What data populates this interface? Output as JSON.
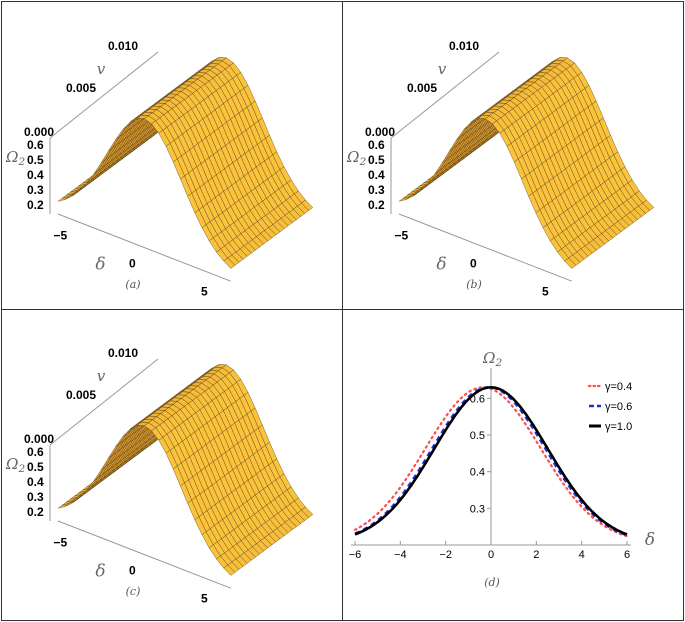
{
  "chart_data": [
    {
      "type": "surface3d",
      "panel_label": "(a)",
      "xlabel": "δ",
      "ylabel": "v",
      "zlabel": "Ω2",
      "x_ticks": [
        "−5",
        "0",
        "5"
      ],
      "y_ticks": [
        "0.000",
        "0.005",
        "0.010"
      ],
      "z_ticks": [
        "0.2",
        "0.3",
        "0.4",
        "0.5",
        "0.6"
      ],
      "xlim": [
        -6,
        6
      ],
      "ylim": [
        0,
        0.01
      ],
      "zlim": [
        0.15,
        0.65
      ],
      "peak": 0.63,
      "sigma": 2.6
    },
    {
      "type": "surface3d",
      "panel_label": "(b)",
      "xlabel": "δ",
      "ylabel": "v",
      "zlabel": "Ω2",
      "x_ticks": [
        "−5",
        "0",
        "5"
      ],
      "y_ticks": [
        "0.000",
        "0.005",
        "0.010"
      ],
      "z_ticks": [
        "0.2",
        "0.3",
        "0.4",
        "0.5",
        "0.6"
      ],
      "xlim": [
        -6,
        6
      ],
      "ylim": [
        0,
        0.01
      ],
      "zlim": [
        0.15,
        0.65
      ],
      "peak": 0.63,
      "sigma": 2.6
    },
    {
      "type": "surface3d",
      "panel_label": "(c)",
      "xlabel": "δ",
      "ylabel": "v",
      "zlabel": "Ω2",
      "x_ticks": [
        "−5",
        "0",
        "5"
      ],
      "y_ticks": [
        "0.000",
        "0.005",
        "0.010"
      ],
      "z_ticks": [
        "0.2",
        "0.3",
        "0.4",
        "0.5",
        "0.6"
      ],
      "xlim": [
        -6,
        6
      ],
      "ylim": [
        0,
        0.01
      ],
      "zlim": [
        0.15,
        0.65
      ],
      "peak": 0.63,
      "sigma": 2.6
    },
    {
      "type": "line",
      "panel_label": "(d)",
      "xlabel": "δ",
      "ylabel": "Ω2",
      "xlim": [
        -6,
        6
      ],
      "ylim": [
        0.2,
        0.65
      ],
      "x_ticks": [
        -6,
        -4,
        -2,
        0,
        2,
        4,
        6
      ],
      "y_ticks": [
        0.3,
        0.4,
        0.5,
        0.6
      ],
      "legend_position": "top-right",
      "series": [
        {
          "name": "γ=0.4",
          "color": "#ff4d4d",
          "style": "dotted",
          "peak": 0.63,
          "center": -0.35,
          "sigma": 2.55
        },
        {
          "name": "γ=0.6",
          "color": "#1a2fd6",
          "style": "dashed",
          "peak": 0.63,
          "center": -0.1,
          "sigma": 2.5
        },
        {
          "name": "γ=1.0",
          "color": "#000000",
          "style": "solid",
          "peak": 0.63,
          "center": 0.0,
          "sigma": 2.5
        }
      ]
    }
  ]
}
